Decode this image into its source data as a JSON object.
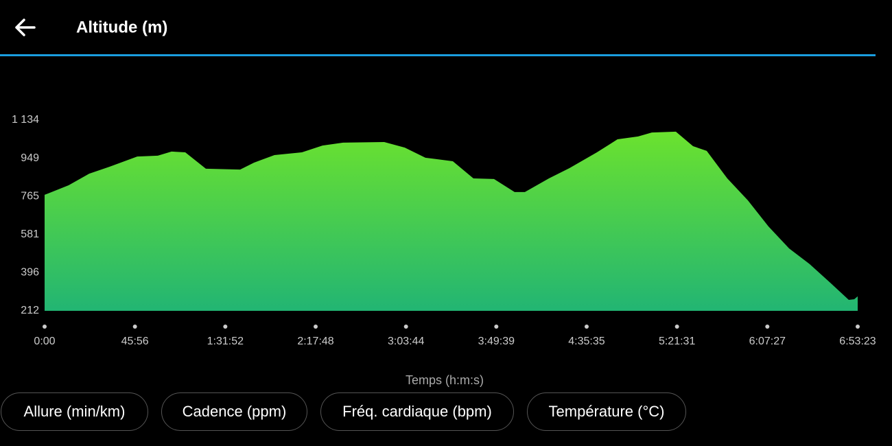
{
  "header": {
    "title": "Altitude (m)"
  },
  "chart_data": {
    "type": "area",
    "x": [
      0,
      105,
      733,
      1360,
      1988,
      2826,
      3453,
      3872,
      4291,
      4919,
      5965,
      6384,
      7012,
      7849,
      8477,
      9105,
      10360,
      10988,
      11616,
      12453,
      13081,
      13709,
      14337,
      14651,
      15384,
      16011,
      16848,
      17476,
      18104,
      18523,
      19256,
      19779,
      20197,
      20825,
      21453,
      22081,
      22709,
      23337,
      23965,
      24530,
      24697,
      24803
    ],
    "values": [
      773,
      779,
      819,
      875,
      909,
      958,
      962,
      982,
      978,
      899,
      895,
      928,
      965,
      978,
      1011,
      1025,
      1028,
      1001,
      952,
      935,
      852,
      849,
      786,
      786,
      852,
      902,
      978,
      1041,
      1055,
      1074,
      1078,
      1008,
      985,
      852,
      746,
      620,
      514,
      438,
      348,
      265,
      268,
      282
    ],
    "color": "#6be22e",
    "xlim": [
      0,
      24803
    ],
    "xticks": [
      {
        "value": 0,
        "label": "0:00"
      },
      {
        "value": 2756,
        "label": "45:56"
      },
      {
        "value": 5512,
        "label": "1:31:52"
      },
      {
        "value": 8268,
        "label": "2:17:48"
      },
      {
        "value": 11024,
        "label": "3:03:44"
      },
      {
        "value": 13779,
        "label": "3:49:39"
      },
      {
        "value": 16535,
        "label": "4:35:35"
      },
      {
        "value": 19291,
        "label": "5:21:31"
      },
      {
        "value": 22047,
        "label": "6:07:27"
      },
      {
        "value": 24803,
        "label": "6:53:23"
      }
    ],
    "ylim": [
      212,
      1134
    ],
    "yticks": [
      212,
      396,
      581,
      765,
      949,
      {
        "value": 1134,
        "label": "1 134"
      }
    ],
    "xlabel": "Temps (h:m:s)"
  },
  "buttons": [
    "Allure (min/km)",
    "Cadence (ppm)",
    "Fréq. cardiaque (bpm)",
    "Température (°C)"
  ]
}
